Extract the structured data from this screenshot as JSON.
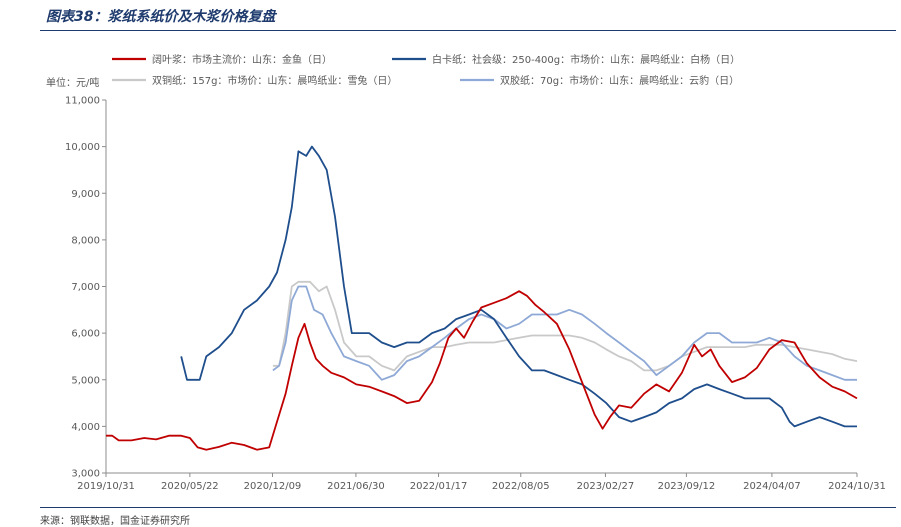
{
  "figure": {
    "title": "图表38：浆纸系纸价及木浆价格复盘",
    "source": "来源：钢联数据，国金证券研究所"
  },
  "chart_data": {
    "type": "line",
    "unit_label": "单位：元/吨",
    "ylim": [
      3000,
      11000
    ],
    "yticks": [
      "3,000",
      "4,000",
      "5,000",
      "6,000",
      "7,000",
      "8,000",
      "9,000",
      "10,000",
      "11,000"
    ],
    "xlim": [
      "2019-10-31",
      "2024-10-31"
    ],
    "xticks": [
      "2019/10/31",
      "2020/05/22",
      "2020/12/09",
      "2021/06/30",
      "2022/01/17",
      "2022/08/05",
      "2023/02/27",
      "2023/09/12",
      "2024/04/07",
      "2024/10/31"
    ],
    "grid": false,
    "legend_position": "top",
    "series": [
      {
        "name": "阔叶浆：市场主流价：山东：金鱼（日）",
        "color": "#c00000",
        "points": [
          [
            "2019-10-31",
            3800
          ],
          [
            "2019-11-15",
            3800
          ],
          [
            "2019-12-01",
            3700
          ],
          [
            "2020-01-01",
            3700
          ],
          [
            "2020-02-01",
            3750
          ],
          [
            "2020-03-01",
            3720
          ],
          [
            "2020-04-01",
            3800
          ],
          [
            "2020-05-01",
            3800
          ],
          [
            "2020-05-22",
            3750
          ],
          [
            "2020-06-10",
            3550
          ],
          [
            "2020-07-01",
            3500
          ],
          [
            "2020-08-01",
            3560
          ],
          [
            "2020-09-01",
            3650
          ],
          [
            "2020-10-01",
            3600
          ],
          [
            "2020-11-01",
            3500
          ],
          [
            "2020-12-01",
            3550
          ],
          [
            "2020-12-20",
            4100
          ],
          [
            "2021-01-10",
            4700
          ],
          [
            "2021-01-25",
            5300
          ],
          [
            "2021-02-10",
            5900
          ],
          [
            "2021-02-25",
            6200
          ],
          [
            "2021-03-10",
            5800
          ],
          [
            "2021-03-25",
            5450
          ],
          [
            "2021-04-10",
            5300
          ],
          [
            "2021-05-01",
            5150
          ],
          [
            "2021-06-01",
            5050
          ],
          [
            "2021-07-01",
            4900
          ],
          [
            "2021-08-01",
            4850
          ],
          [
            "2021-09-01",
            4750
          ],
          [
            "2021-10-01",
            4650
          ],
          [
            "2021-11-01",
            4500
          ],
          [
            "2021-12-01",
            4550
          ],
          [
            "2022-01-01",
            4950
          ],
          [
            "2022-01-20",
            5350
          ],
          [
            "2022-02-10",
            5900
          ],
          [
            "2022-03-01",
            6100
          ],
          [
            "2022-03-20",
            5900
          ],
          [
            "2022-04-10",
            6250
          ],
          [
            "2022-05-01",
            6550
          ],
          [
            "2022-06-01",
            6650
          ],
          [
            "2022-07-01",
            6750
          ],
          [
            "2022-08-01",
            6900
          ],
          [
            "2022-08-20",
            6800
          ],
          [
            "2022-09-10",
            6600
          ],
          [
            "2022-10-01",
            6450
          ],
          [
            "2022-11-01",
            6200
          ],
          [
            "2022-12-01",
            5650
          ],
          [
            "2023-01-01",
            4950
          ],
          [
            "2023-02-01",
            4250
          ],
          [
            "2023-02-20",
            3950
          ],
          [
            "2023-03-10",
            4200
          ],
          [
            "2023-04-01",
            4450
          ],
          [
            "2023-05-01",
            4400
          ],
          [
            "2023-06-01",
            4700
          ],
          [
            "2023-07-01",
            4900
          ],
          [
            "2023-08-01",
            4750
          ],
          [
            "2023-09-01",
            5150
          ],
          [
            "2023-10-01",
            5750
          ],
          [
            "2023-10-20",
            5500
          ],
          [
            "2023-11-10",
            5650
          ],
          [
            "2023-12-01",
            5300
          ],
          [
            "2024-01-01",
            4950
          ],
          [
            "2024-02-01",
            5050
          ],
          [
            "2024-03-01",
            5250
          ],
          [
            "2024-04-01",
            5650
          ],
          [
            "2024-05-01",
            5850
          ],
          [
            "2024-06-01",
            5800
          ],
          [
            "2024-07-01",
            5350
          ],
          [
            "2024-08-01",
            5050
          ],
          [
            "2024-09-01",
            4850
          ],
          [
            "2024-10-01",
            4750
          ],
          [
            "2024-10-31",
            4600
          ]
        ]
      },
      {
        "name": "白卡纸：社会级：250-400g：市场价：山东：晨鸣纸业：白杨（日）",
        "color": "#1f4e8c",
        "points": [
          [
            "2020-05-01",
            5500
          ],
          [
            "2020-05-15",
            5000
          ],
          [
            "2020-06-15",
            5000
          ],
          [
            "2020-07-01",
            5500
          ],
          [
            "2020-08-01",
            5700
          ],
          [
            "2020-09-01",
            6000
          ],
          [
            "2020-10-01",
            6500
          ],
          [
            "2020-11-01",
            6700
          ],
          [
            "2020-12-01",
            7000
          ],
          [
            "2020-12-20",
            7300
          ],
          [
            "2021-01-10",
            8000
          ],
          [
            "2021-01-25",
            8700
          ],
          [
            "2021-02-10",
            9900
          ],
          [
            "2021-03-01",
            9800
          ],
          [
            "2021-03-15",
            10000
          ],
          [
            "2021-04-01",
            9800
          ],
          [
            "2021-04-20",
            9500
          ],
          [
            "2021-05-10",
            8500
          ],
          [
            "2021-06-01",
            7000
          ],
          [
            "2021-06-20",
            6000
          ],
          [
            "2021-08-01",
            6000
          ],
          [
            "2021-09-01",
            5800
          ],
          [
            "2021-10-01",
            5700
          ],
          [
            "2021-11-01",
            5800
          ],
          [
            "2021-12-01",
            5800
          ],
          [
            "2022-01-01",
            6000
          ],
          [
            "2022-02-01",
            6100
          ],
          [
            "2022-03-01",
            6300
          ],
          [
            "2022-04-01",
            6400
          ],
          [
            "2022-05-01",
            6500
          ],
          [
            "2022-06-01",
            6300
          ],
          [
            "2022-07-01",
            5900
          ],
          [
            "2022-08-01",
            5500
          ],
          [
            "2022-09-01",
            5200
          ],
          [
            "2022-10-01",
            5200
          ],
          [
            "2022-11-01",
            5100
          ],
          [
            "2022-12-01",
            5000
          ],
          [
            "2023-01-01",
            4900
          ],
          [
            "2023-02-01",
            4700
          ],
          [
            "2023-03-01",
            4500
          ],
          [
            "2023-04-01",
            4200
          ],
          [
            "2023-05-01",
            4100
          ],
          [
            "2023-06-01",
            4200
          ],
          [
            "2023-07-01",
            4300
          ],
          [
            "2023-08-01",
            4500
          ],
          [
            "2023-09-01",
            4600
          ],
          [
            "2023-10-01",
            4800
          ],
          [
            "2023-11-01",
            4900
          ],
          [
            "2023-12-01",
            4800
          ],
          [
            "2024-01-01",
            4700
          ],
          [
            "2024-02-01",
            4600
          ],
          [
            "2024-03-01",
            4600
          ],
          [
            "2024-04-01",
            4600
          ],
          [
            "2024-05-01",
            4400
          ],
          [
            "2024-05-20",
            4100
          ],
          [
            "2024-06-01",
            4000
          ],
          [
            "2024-07-01",
            4100
          ],
          [
            "2024-08-01",
            4200
          ],
          [
            "2024-09-01",
            4100
          ],
          [
            "2024-10-01",
            4000
          ],
          [
            "2024-10-31",
            4000
          ]
        ]
      },
      {
        "name": "双铜纸：157g：市场价：山东：晨鸣纸业：雪兔（日）",
        "color": "#c9c9c9",
        "points": [
          [
            "2020-12-10",
            5300
          ],
          [
            "2020-12-25",
            5300
          ],
          [
            "2021-01-10",
            6000
          ],
          [
            "2021-01-25",
            7000
          ],
          [
            "2021-02-10",
            7100
          ],
          [
            "2021-03-10",
            7100
          ],
          [
            "2021-04-01",
            6900
          ],
          [
            "2021-04-20",
            7000
          ],
          [
            "2021-05-10",
            6500
          ],
          [
            "2021-06-01",
            5800
          ],
          [
            "2021-07-01",
            5500
          ],
          [
            "2021-08-01",
            5500
          ],
          [
            "2021-09-01",
            5300
          ],
          [
            "2021-10-01",
            5200
          ],
          [
            "2021-11-01",
            5500
          ],
          [
            "2021-12-01",
            5600
          ],
          [
            "2022-01-01",
            5700
          ],
          [
            "2022-02-01",
            5700
          ],
          [
            "2022-03-01",
            5750
          ],
          [
            "2022-04-01",
            5800
          ],
          [
            "2022-05-01",
            5800
          ],
          [
            "2022-06-01",
            5800
          ],
          [
            "2022-07-01",
            5850
          ],
          [
            "2022-08-01",
            5900
          ],
          [
            "2022-09-01",
            5950
          ],
          [
            "2022-10-01",
            5950
          ],
          [
            "2022-11-01",
            5950
          ],
          [
            "2022-12-01",
            5950
          ],
          [
            "2023-01-01",
            5900
          ],
          [
            "2023-02-01",
            5800
          ],
          [
            "2023-03-01",
            5650
          ],
          [
            "2023-04-01",
            5500
          ],
          [
            "2023-05-01",
            5400
          ],
          [
            "2023-06-01",
            5200
          ],
          [
            "2023-07-01",
            5200
          ],
          [
            "2023-08-01",
            5300
          ],
          [
            "2023-09-01",
            5500
          ],
          [
            "2023-10-01",
            5600
          ],
          [
            "2023-11-01",
            5700
          ],
          [
            "2023-12-01",
            5700
          ],
          [
            "2024-01-01",
            5700
          ],
          [
            "2024-02-01",
            5700
          ],
          [
            "2024-03-01",
            5750
          ],
          [
            "2024-04-01",
            5750
          ],
          [
            "2024-05-01",
            5750
          ],
          [
            "2024-06-01",
            5700
          ],
          [
            "2024-07-01",
            5650
          ],
          [
            "2024-08-01",
            5600
          ],
          [
            "2024-09-01",
            5550
          ],
          [
            "2024-10-01",
            5450
          ],
          [
            "2024-10-31",
            5400
          ]
        ]
      },
      {
        "name": "双胶纸：70g：市场价：山东：晨鸣纸业：云豹（日）",
        "color": "#8ea9d6",
        "points": [
          [
            "2020-12-10",
            5200
          ],
          [
            "2020-12-25",
            5300
          ],
          [
            "2021-01-10",
            5800
          ],
          [
            "2021-01-25",
            6700
          ],
          [
            "2021-02-10",
            7000
          ],
          [
            "2021-03-01",
            7000
          ],
          [
            "2021-03-20",
            6500
          ],
          [
            "2021-04-10",
            6400
          ],
          [
            "2021-05-01",
            6000
          ],
          [
            "2021-06-01",
            5500
          ],
          [
            "2021-07-01",
            5400
          ],
          [
            "2021-08-01",
            5300
          ],
          [
            "2021-09-01",
            5000
          ],
          [
            "2021-10-01",
            5100
          ],
          [
            "2021-11-01",
            5400
          ],
          [
            "2021-12-01",
            5500
          ],
          [
            "2022-01-01",
            5700
          ],
          [
            "2022-02-01",
            5900
          ],
          [
            "2022-03-01",
            6100
          ],
          [
            "2022-04-01",
            6300
          ],
          [
            "2022-05-01",
            6400
          ],
          [
            "2022-06-01",
            6300
          ],
          [
            "2022-07-01",
            6100
          ],
          [
            "2022-08-01",
            6200
          ],
          [
            "2022-09-01",
            6400
          ],
          [
            "2022-10-01",
            6400
          ],
          [
            "2022-11-01",
            6400
          ],
          [
            "2022-12-01",
            6500
          ],
          [
            "2023-01-01",
            6400
          ],
          [
            "2023-02-01",
            6200
          ],
          [
            "2023-03-01",
            6000
          ],
          [
            "2023-04-01",
            5800
          ],
          [
            "2023-05-01",
            5600
          ],
          [
            "2023-06-01",
            5400
          ],
          [
            "2023-07-01",
            5100
          ],
          [
            "2023-08-01",
            5300
          ],
          [
            "2023-09-01",
            5500
          ],
          [
            "2023-10-01",
            5800
          ],
          [
            "2023-11-01",
            6000
          ],
          [
            "2023-12-01",
            6000
          ],
          [
            "2024-01-01",
            5800
          ],
          [
            "2024-02-01",
            5800
          ],
          [
            "2024-03-01",
            5800
          ],
          [
            "2024-04-01",
            5900
          ],
          [
            "2024-05-01",
            5800
          ],
          [
            "2024-06-01",
            5500
          ],
          [
            "2024-07-01",
            5300
          ],
          [
            "2024-08-01",
            5200
          ],
          [
            "2024-09-01",
            5100
          ],
          [
            "2024-10-01",
            5000
          ],
          [
            "2024-10-31",
            5000
          ]
        ]
      }
    ]
  }
}
